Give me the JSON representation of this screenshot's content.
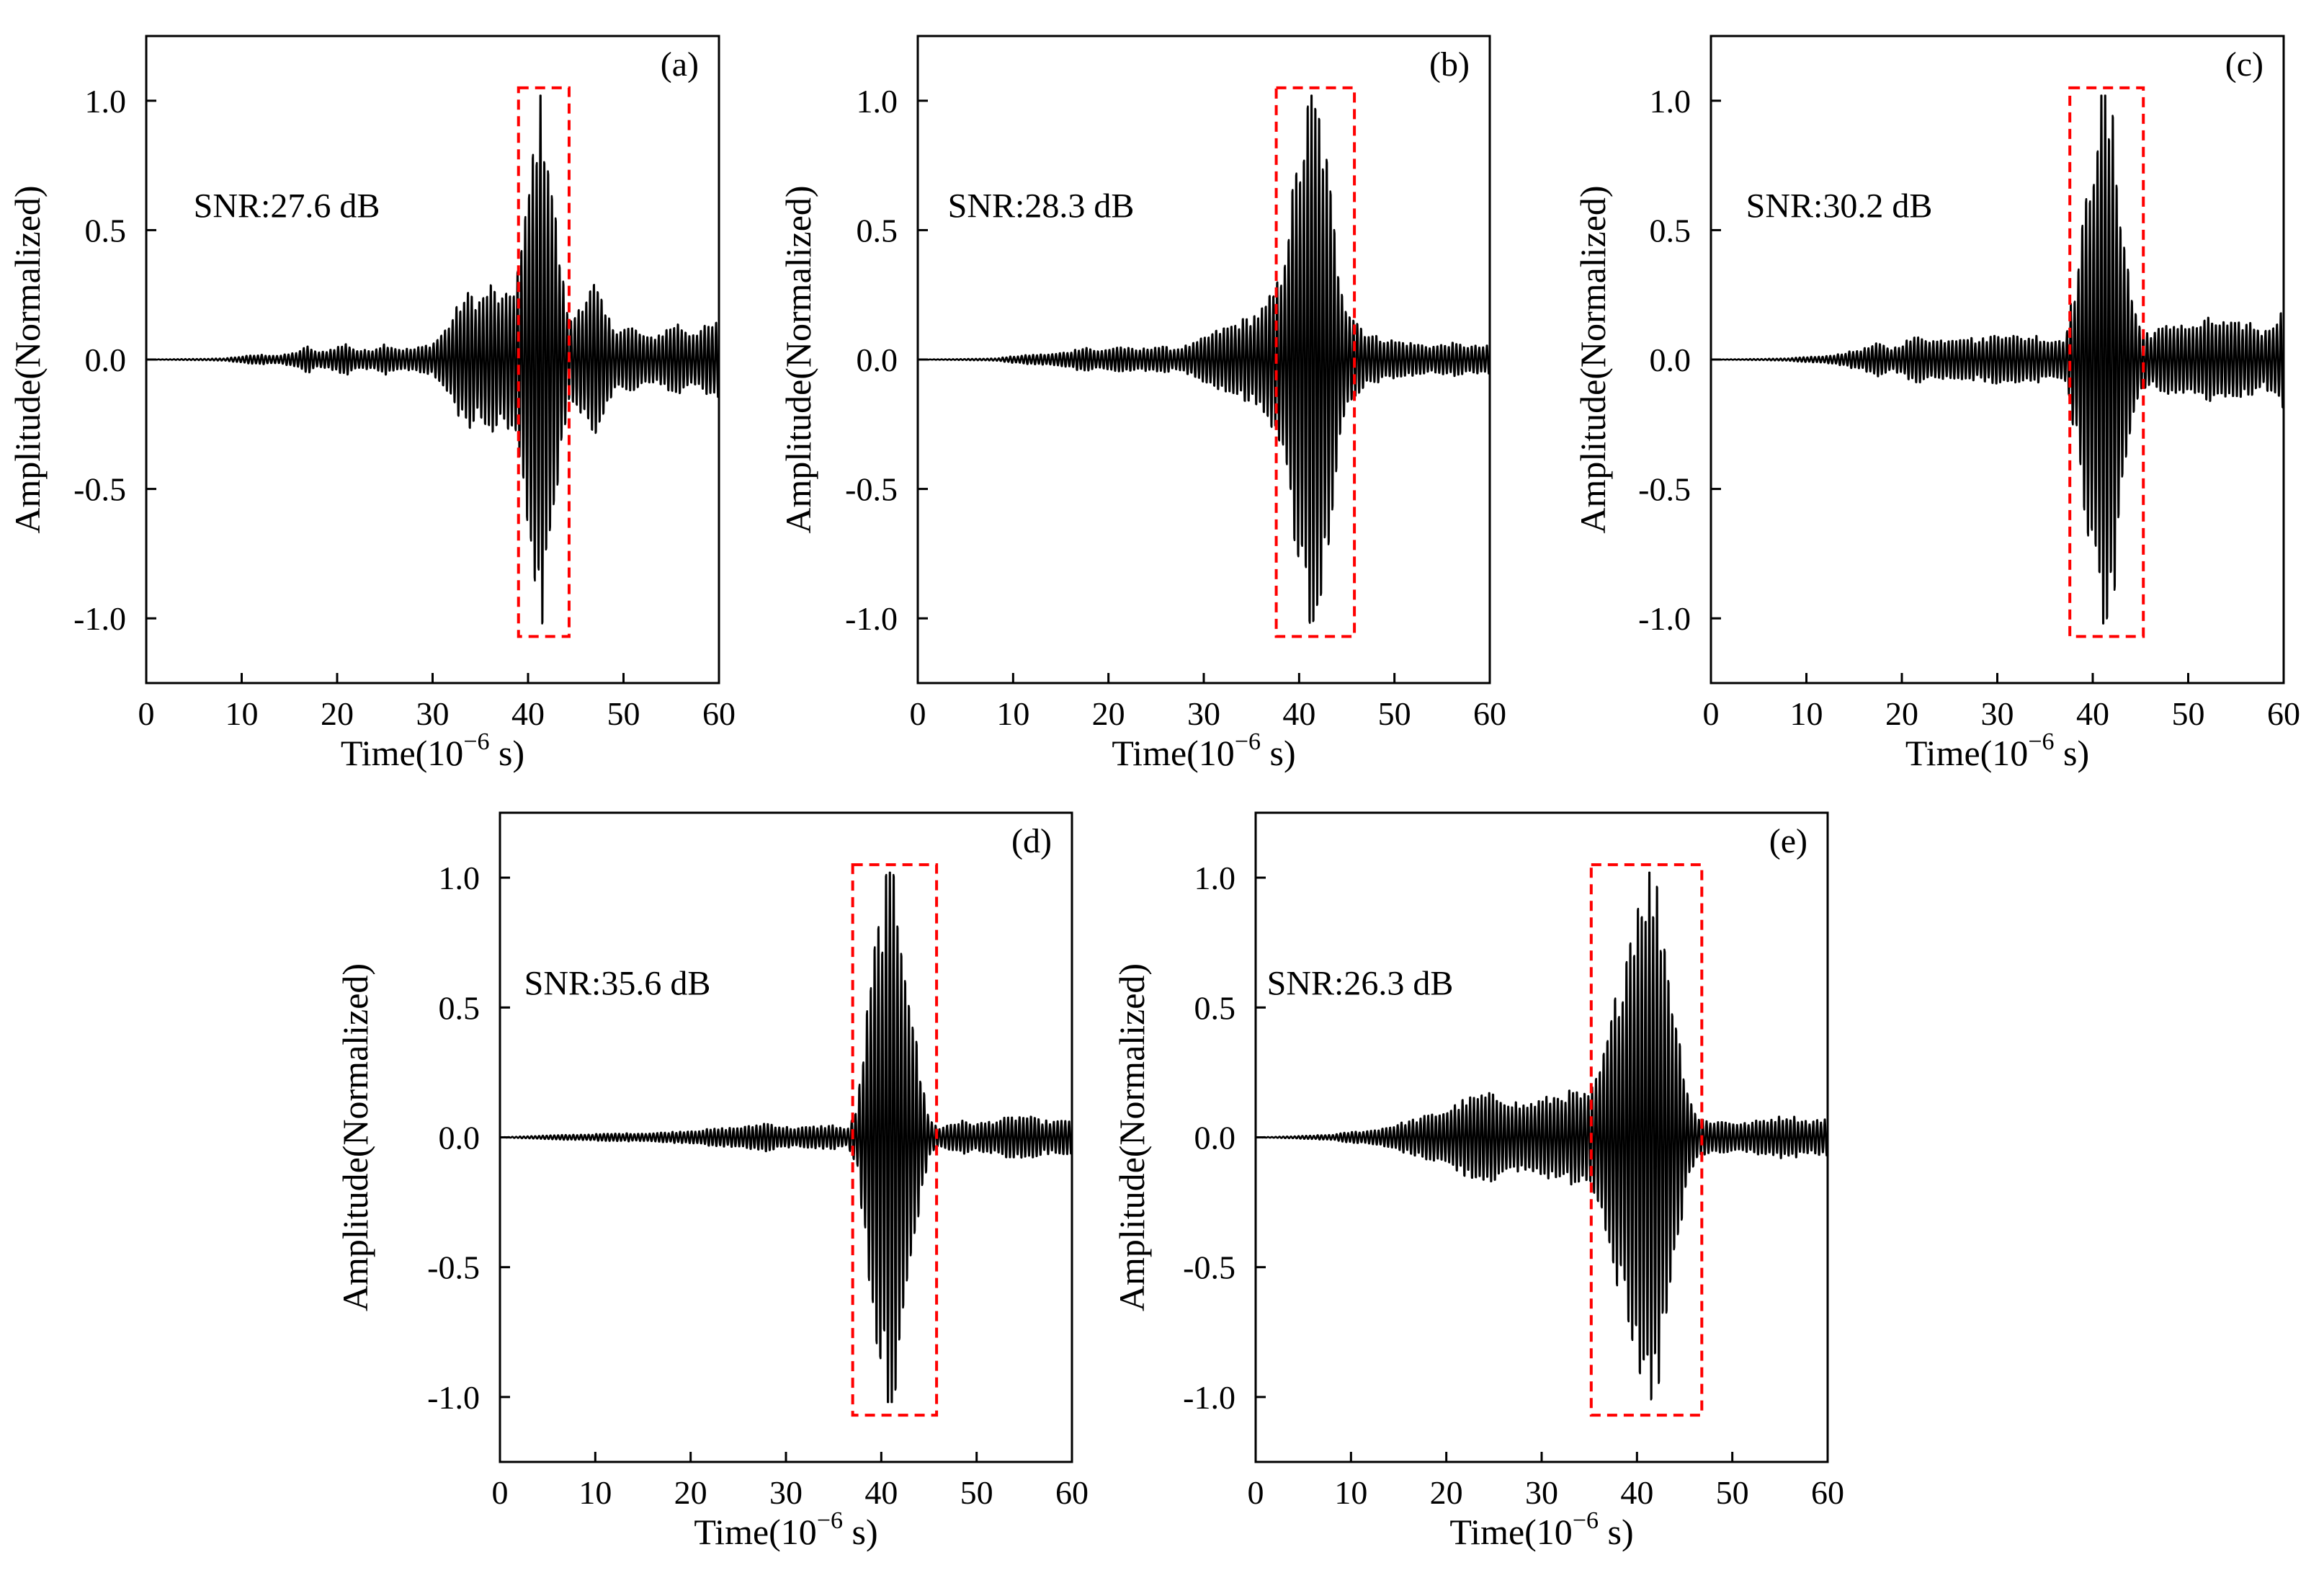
{
  "figure": {
    "colors": {
      "waveform": "#000000",
      "highlight_box": "#ff0000",
      "axes": "#000000",
      "background": "#ffffff"
    }
  },
  "chart_data": [
    {
      "type": "line",
      "panel": "(a)",
      "annotation": "SNR:27.6 dB",
      "xlabel_main": "Time(10",
      "xlabel_exp": "−6",
      "xlabel_unit": " s)",
      "ylabel": "Amplitude(Normalized)",
      "xlim": [
        0,
        60
      ],
      "ylim": [
        -1.25,
        1.25
      ],
      "xticks": [
        0,
        10,
        20,
        30,
        40,
        50,
        60
      ],
      "xtick_labels": [
        "0",
        "10",
        "20",
        "30",
        "40",
        "50",
        "60"
      ],
      "yticks": [
        1.0,
        0.5,
        0.0,
        -0.5,
        -1.0
      ],
      "ytick_labels": [
        "1.0",
        "0.5",
        "0.0",
        "-0.5",
        "-1.0"
      ],
      "highlight_window": {
        "x": [
          39.0,
          44.3
        ],
        "y": [
          -1.07,
          1.05
        ]
      },
      "series": [
        {
          "style": "oscillatory waveform, carrier period ≈ 0.4 µs",
          "envelope": [
            [
              0,
              0
            ],
            [
              8,
              0.004
            ],
            [
              10,
              0.012
            ],
            [
              12,
              0.018
            ],
            [
              14,
              0.015
            ],
            [
              15.5,
              0.025
            ],
            [
              17,
              0.05
            ],
            [
              18,
              0.025
            ],
            [
              19,
              0.035
            ],
            [
              21,
              0.06
            ],
            [
              22,
              0.035
            ],
            [
              23.5,
              0.035
            ],
            [
              25,
              0.06
            ],
            [
              26.5,
              0.04
            ],
            [
              28,
              0.04
            ],
            [
              30,
              0.06
            ],
            [
              31.5,
              0.12
            ],
            [
              33,
              0.22
            ],
            [
              34,
              0.25
            ],
            [
              35,
              0.22
            ],
            [
              36,
              0.28
            ],
            [
              37.5,
              0.22
            ],
            [
              38.5,
              0.28
            ],
            [
              39.5,
              0.45
            ],
            [
              40.5,
              0.78
            ],
            [
              41.2,
              1.0
            ],
            [
              42,
              0.86
            ],
            [
              42.8,
              0.55
            ],
            [
              43.8,
              0.25
            ],
            [
              44.5,
              0.14
            ],
            [
              45.5,
              0.22
            ],
            [
              47,
              0.28
            ],
            [
              48,
              0.18
            ],
            [
              49,
              0.12
            ],
            [
              51,
              0.12
            ],
            [
              52.5,
              0.08
            ],
            [
              54,
              0.1
            ],
            [
              55.5,
              0.14
            ],
            [
              57,
              0.1
            ],
            [
              58.5,
              0.12
            ],
            [
              60,
              0.14
            ]
          ]
        }
      ]
    },
    {
      "type": "line",
      "panel": "(b)",
      "annotation": "SNR:28.3 dB",
      "xlabel_main": "Time(10",
      "xlabel_exp": "−6",
      "xlabel_unit": " s)",
      "ylabel": "Amplitude(Normalized)",
      "xlim": [
        0,
        60
      ],
      "ylim": [
        -1.25,
        1.25
      ],
      "xticks": [
        0,
        10,
        20,
        30,
        40,
        50,
        60
      ],
      "xtick_labels": [
        "0",
        "10",
        "20",
        "30",
        "40",
        "50",
        "60"
      ],
      "yticks": [
        1.0,
        0.5,
        0.0,
        -0.5,
        -1.0
      ],
      "ytick_labels": [
        "1.0",
        "0.5",
        "0.0",
        "-0.5",
        "-1.0"
      ],
      "highlight_window": {
        "x": [
          37.6,
          45.8
        ],
        "y": [
          -1.07,
          1.05
        ]
      },
      "series": [
        {
          "style": "oscillatory waveform, carrier period ≈ 0.4 µs",
          "envelope": [
            [
              0,
              0
            ],
            [
              8,
              0.004
            ],
            [
              10,
              0.012
            ],
            [
              12,
              0.018
            ],
            [
              14,
              0.02
            ],
            [
              16,
              0.03
            ],
            [
              17.5,
              0.05
            ],
            [
              19,
              0.03
            ],
            [
              21,
              0.05
            ],
            [
              23,
              0.035
            ],
            [
              25,
              0.05
            ],
            [
              27,
              0.04
            ],
            [
              29,
              0.06
            ],
            [
              31,
              0.1
            ],
            [
              33,
              0.13
            ],
            [
              35,
              0.16
            ],
            [
              36.5,
              0.2
            ],
            [
              38,
              0.3
            ],
            [
              39,
              0.55
            ],
            [
              40.5,
              0.85
            ],
            [
              41.3,
              1.0
            ],
            [
              42.3,
              0.9
            ],
            [
              43.2,
              0.65
            ],
            [
              44,
              0.38
            ],
            [
              45,
              0.2
            ],
            [
              46,
              0.15
            ],
            [
              47,
              0.1
            ],
            [
              48.5,
              0.08
            ],
            [
              50,
              0.07
            ],
            [
              52,
              0.06
            ],
            [
              54,
              0.05
            ],
            [
              56,
              0.06
            ],
            [
              58,
              0.05
            ],
            [
              60,
              0.05
            ]
          ]
        }
      ]
    },
    {
      "type": "line",
      "panel": "(c)",
      "annotation": "SNR:30.2 dB",
      "xlabel_main": "Time(10",
      "xlabel_exp": "−6",
      "xlabel_unit": " s)",
      "ylabel": "Amplitude(Normalized)",
      "xlim": [
        0,
        60
      ],
      "ylim": [
        -1.25,
        1.25
      ],
      "xticks": [
        0,
        10,
        20,
        30,
        40,
        50,
        60
      ],
      "xtick_labels": [
        "0",
        "10",
        "20",
        "30",
        "40",
        "50",
        "60"
      ],
      "yticks": [
        1.0,
        0.5,
        0.0,
        -0.5,
        -1.0
      ],
      "ytick_labels": [
        "1.0",
        "0.5",
        "0.0",
        "-0.5",
        "-1.0"
      ],
      "highlight_window": {
        "x": [
          37.6,
          45.3
        ],
        "y": [
          -1.07,
          1.05
        ]
      },
      "series": [
        {
          "style": "oscillatory waveform, carrier period ≈ 0.4 µs",
          "envelope": [
            [
              0,
              0
            ],
            [
              8,
              0.004
            ],
            [
              10,
              0.01
            ],
            [
              12,
              0.012
            ],
            [
              14,
              0.025
            ],
            [
              16,
              0.04
            ],
            [
              17.5,
              0.06
            ],
            [
              19,
              0.04
            ],
            [
              20.5,
              0.07
            ],
            [
              22,
              0.09
            ],
            [
              23.5,
              0.07
            ],
            [
              25,
              0.08
            ],
            [
              26.5,
              0.09
            ],
            [
              28,
              0.07
            ],
            [
              29.5,
              0.09
            ],
            [
              31,
              0.1
            ],
            [
              32.5,
              0.08
            ],
            [
              34,
              0.09
            ],
            [
              35.5,
              0.07
            ],
            [
              37,
              0.08
            ],
            [
              38.3,
              0.3
            ],
            [
              39.5,
              0.65
            ],
            [
              40.5,
              0.92
            ],
            [
              41.3,
              1.0
            ],
            [
              42.2,
              0.85
            ],
            [
              43.2,
              0.5
            ],
            [
              44,
              0.25
            ],
            [
              45,
              0.12
            ],
            [
              46,
              0.1
            ],
            [
              47.5,
              0.12
            ],
            [
              49,
              0.14
            ],
            [
              50.5,
              0.12
            ],
            [
              52,
              0.15
            ],
            [
              53.5,
              0.14
            ],
            [
              55,
              0.13
            ],
            [
              56.5,
              0.14
            ],
            [
              58,
              0.1
            ],
            [
              59,
              0.15
            ],
            [
              60,
              0.18
            ]
          ]
        }
      ]
    },
    {
      "type": "line",
      "panel": "(d)",
      "annotation": "SNR:35.6 dB",
      "xlabel_main": "Time(10",
      "xlabel_exp": "−6",
      "xlabel_unit": " s)",
      "ylabel": "Amplitude(Normalized)",
      "xlim": [
        0,
        60
      ],
      "ylim": [
        -1.25,
        1.25
      ],
      "xticks": [
        0,
        10,
        20,
        30,
        40,
        50,
        60
      ],
      "xtick_labels": [
        "0",
        "10",
        "20",
        "30",
        "40",
        "50",
        "60"
      ],
      "yticks": [
        1.0,
        0.5,
        0.0,
        -0.5,
        -1.0
      ],
      "ytick_labels": [
        "1.0",
        "0.5",
        "0.0",
        "-0.5",
        "-1.0"
      ],
      "highlight_window": {
        "x": [
          37.0,
          45.8
        ],
        "y": [
          -1.07,
          1.05
        ]
      },
      "series": [
        {
          "style": "oscillatory waveform, carrier period ≈ 0.4 µs",
          "envelope": [
            [
              0,
              0
            ],
            [
              4,
              0.006
            ],
            [
              8,
              0.01
            ],
            [
              12,
              0.014
            ],
            [
              16,
              0.016
            ],
            [
              18,
              0.02
            ],
            [
              20,
              0.025
            ],
            [
              22,
              0.03
            ],
            [
              24,
              0.035
            ],
            [
              26,
              0.04
            ],
            [
              28,
              0.055
            ],
            [
              29.5,
              0.04
            ],
            [
              31,
              0.035
            ],
            [
              33,
              0.04
            ],
            [
              35,
              0.045
            ],
            [
              36.5,
              0.03
            ],
            [
              37.5,
              0.12
            ],
            [
              38.5,
              0.45
            ],
            [
              39.5,
              0.75
            ],
            [
              40.5,
              0.95
            ],
            [
              41.2,
              1.0
            ],
            [
              42,
              0.85
            ],
            [
              43,
              0.55
            ],
            [
              44,
              0.25
            ],
            [
              45,
              0.08
            ],
            [
              46,
              0.03
            ],
            [
              47,
              0.05
            ],
            [
              48.5,
              0.06
            ],
            [
              50,
              0.05
            ],
            [
              51.5,
              0.06
            ],
            [
              53,
              0.07
            ],
            [
              55,
              0.08
            ],
            [
              57,
              0.06
            ],
            [
              59,
              0.06
            ],
            [
              60,
              0.07
            ]
          ]
        }
      ]
    },
    {
      "type": "line",
      "panel": "(e)",
      "annotation": "SNR:26.3 dB",
      "xlabel_main": "Time(10",
      "xlabel_exp": "−6",
      "xlabel_unit": " s)",
      "ylabel": "Amplitude(Normalized)",
      "xlim": [
        0,
        60
      ],
      "ylim": [
        -1.25,
        1.25
      ],
      "xticks": [
        0,
        10,
        20,
        30,
        40,
        50,
        60
      ],
      "xtick_labels": [
        "0",
        "10",
        "20",
        "30",
        "40",
        "50",
        "60"
      ],
      "yticks": [
        1.0,
        0.5,
        0.0,
        -0.5,
        -1.0
      ],
      "ytick_labels": [
        "1.0",
        "0.5",
        "0.0",
        "-0.5",
        "-1.0"
      ],
      "highlight_window": {
        "x": [
          35.2,
          46.8
        ],
        "y": [
          -1.07,
          1.05
        ]
      },
      "series": [
        {
          "style": "oscillatory waveform, carrier period ≈ 0.4 µs",
          "envelope": [
            [
              0,
              0
            ],
            [
              4,
              0.004
            ],
            [
              8,
              0.01
            ],
            [
              10,
              0.02
            ],
            [
              12,
              0.025
            ],
            [
              14,
              0.04
            ],
            [
              16,
              0.06
            ],
            [
              18,
              0.08
            ],
            [
              20,
              0.1
            ],
            [
              22,
              0.14
            ],
            [
              24,
              0.16
            ],
            [
              26,
              0.15
            ],
            [
              28,
              0.12
            ],
            [
              30,
              0.14
            ],
            [
              32,
              0.16
            ],
            [
              33.5,
              0.17
            ],
            [
              35,
              0.15
            ],
            [
              36.5,
              0.3
            ],
            [
              38,
              0.55
            ],
            [
              39.5,
              0.82
            ],
            [
              40.5,
              0.97
            ],
            [
              41.2,
              1.0
            ],
            [
              42.3,
              0.9
            ],
            [
              43.5,
              0.6
            ],
            [
              44.5,
              0.35
            ],
            [
              45.5,
              0.15
            ],
            [
              46.5,
              0.07
            ],
            [
              48,
              0.06
            ],
            [
              49.5,
              0.06
            ],
            [
              51,
              0.05
            ],
            [
              52.5,
              0.06
            ],
            [
              54,
              0.07
            ],
            [
              56,
              0.08
            ],
            [
              58,
              0.06
            ],
            [
              60,
              0.07
            ]
          ]
        }
      ]
    }
  ]
}
